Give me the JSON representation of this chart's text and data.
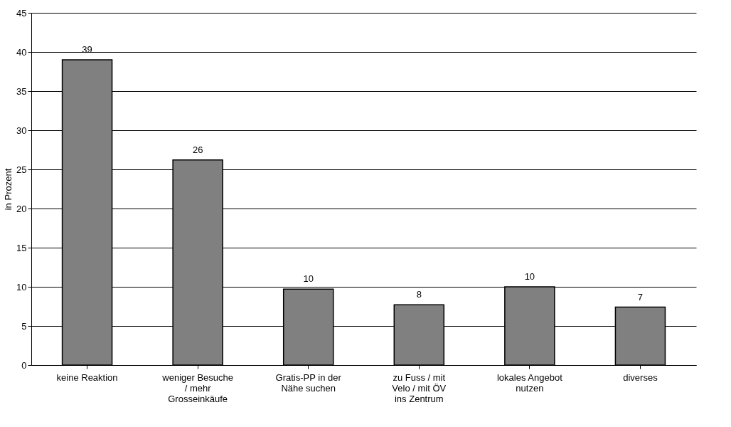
{
  "chart_data": {
    "type": "bar",
    "ylabel": "in Prozent",
    "categories": [
      "keine Reaktion",
      "weniger Besuche / mehr Grosseinkäufe",
      "Gratis-PP in der Nähe suchen",
      "zu Fuss / mit Velo / mit ÖV ins Zentrum",
      "lokales Angebot nutzen",
      "diverses"
    ],
    "values": [
      39,
      26.2,
      9.7,
      7.7,
      10,
      7.4
    ],
    "value_labels": [
      "39",
      "26",
      "10",
      "8",
      "10",
      "7"
    ],
    "color": "#808080",
    "ylim": [
      0,
      45
    ],
    "yticks": [
      0,
      5,
      10,
      15,
      20,
      25,
      30,
      35,
      40,
      45
    ],
    "grid": "y"
  }
}
